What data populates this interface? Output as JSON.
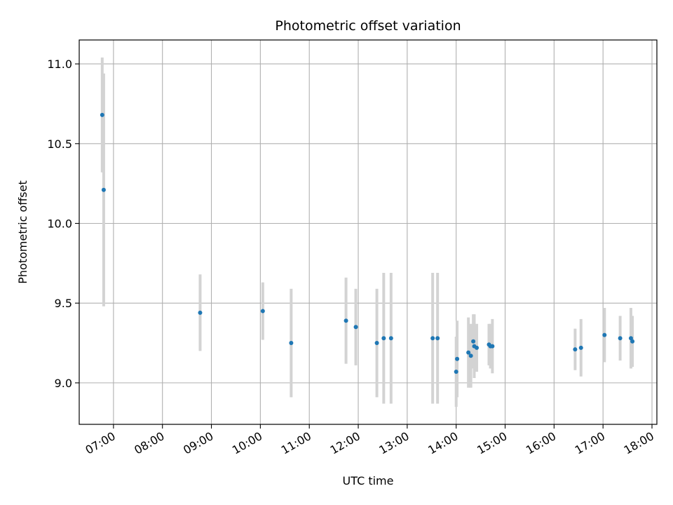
{
  "chart_data": {
    "type": "scatter",
    "title": "Photometric offset variation",
    "xlabel": "UTC time",
    "ylabel": "Photometric offset",
    "x_unit": "hours UTC",
    "xlim": [
      6.3,
      18.1
    ],
    "ylim": [
      8.74,
      11.15
    ],
    "grid": true,
    "legend": "none",
    "point_color": "#1f77b4",
    "errorbar_color": "#d3d3d3",
    "x_ticks": [
      {
        "value": 7,
        "label": "07:00"
      },
      {
        "value": 8,
        "label": "08:00"
      },
      {
        "value": 9,
        "label": "09:00"
      },
      {
        "value": 10,
        "label": "10:00"
      },
      {
        "value": 11,
        "label": "11:00"
      },
      {
        "value": 12,
        "label": "12:00"
      },
      {
        "value": 13,
        "label": "13:00"
      },
      {
        "value": 14,
        "label": "14:00"
      },
      {
        "value": 15,
        "label": "15:00"
      },
      {
        "value": 16,
        "label": "16:00"
      },
      {
        "value": 17,
        "label": "17:00"
      },
      {
        "value": 18,
        "label": "18:00"
      }
    ],
    "y_ticks": [
      {
        "value": 9.0,
        "label": "9.0"
      },
      {
        "value": 9.5,
        "label": "9.5"
      },
      {
        "value": 10.0,
        "label": "10.0"
      },
      {
        "value": 10.5,
        "label": "10.5"
      },
      {
        "value": 11.0,
        "label": "11.0"
      }
    ],
    "points": [
      {
        "x": 6.77,
        "y": 10.68,
        "err": 0.36
      },
      {
        "x": 6.8,
        "y": 10.21,
        "err": 0.73
      },
      {
        "x": 8.77,
        "y": 9.44,
        "err": 0.24
      },
      {
        "x": 10.05,
        "y": 9.45,
        "err": 0.18
      },
      {
        "x": 10.63,
        "y": 9.25,
        "err": 0.34
      },
      {
        "x": 11.75,
        "y": 9.39,
        "err": 0.27
      },
      {
        "x": 11.95,
        "y": 9.35,
        "err": 0.24
      },
      {
        "x": 12.38,
        "y": 9.25,
        "err": 0.34
      },
      {
        "x": 12.52,
        "y": 9.28,
        "err": 0.41
      },
      {
        "x": 12.67,
        "y": 9.28,
        "err": 0.41
      },
      {
        "x": 13.52,
        "y": 9.28,
        "err": 0.41
      },
      {
        "x": 13.62,
        "y": 9.28,
        "err": 0.41
      },
      {
        "x": 14.0,
        "y": 9.07,
        "err": 0.22
      },
      {
        "x": 14.02,
        "y": 9.15,
        "err": 0.24
      },
      {
        "x": 14.25,
        "y": 9.19,
        "err": 0.22
      },
      {
        "x": 14.3,
        "y": 9.17,
        "err": 0.2
      },
      {
        "x": 14.35,
        "y": 9.26,
        "err": 0.17
      },
      {
        "x": 14.37,
        "y": 9.23,
        "err": 0.2
      },
      {
        "x": 14.42,
        "y": 9.22,
        "err": 0.15
      },
      {
        "x": 14.67,
        "y": 9.24,
        "err": 0.13
      },
      {
        "x": 14.7,
        "y": 9.23,
        "err": 0.14
      },
      {
        "x": 14.74,
        "y": 9.23,
        "err": 0.17
      },
      {
        "x": 16.43,
        "y": 9.21,
        "err": 0.13
      },
      {
        "x": 16.55,
        "y": 9.22,
        "err": 0.18
      },
      {
        "x": 17.03,
        "y": 9.3,
        "err": 0.17
      },
      {
        "x": 17.35,
        "y": 9.28,
        "err": 0.14
      },
      {
        "x": 17.57,
        "y": 9.28,
        "err": 0.19
      },
      {
        "x": 17.6,
        "y": 9.26,
        "err": 0.16
      }
    ]
  }
}
